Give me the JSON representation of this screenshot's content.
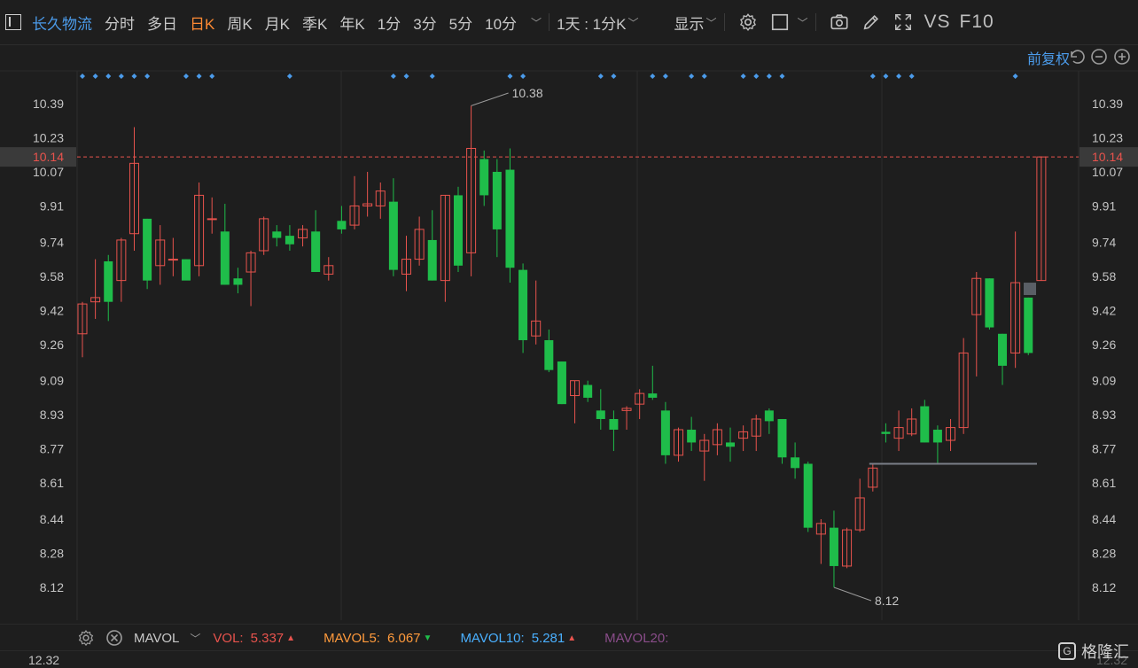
{
  "toolbar": {
    "stock_name": "长久物流",
    "periods": [
      "分时",
      "多日",
      "日K",
      "周K",
      "月K",
      "季K",
      "年K",
      "1分",
      "3分",
      "5分",
      "10分"
    ],
    "active_period": "日K",
    "multi_period": "1天 : 1分K",
    "display": "显示",
    "vs": "VS",
    "f10": "F10"
  },
  "chart": {
    "adjust_mode": "前复权",
    "price_levels": [
      "10.39",
      "10.23",
      "10.07",
      "9.91",
      "9.74",
      "9.58",
      "9.42",
      "9.26",
      "9.09",
      "8.93",
      "8.77",
      "8.61",
      "8.44",
      "8.28",
      "8.12"
    ],
    "current_price": "10.14",
    "high_label": "10.38",
    "low_label": "8.12",
    "colors": {
      "up": "#e8534d",
      "down": "#1fbd4a",
      "bg": "#1e1e1e",
      "grid": "#2c2c2c",
      "accent": "#4b9bea",
      "current": "#e8534d"
    }
  },
  "volume": {
    "indicator": "MAVOL",
    "vol_label": "VOL:",
    "vol_value": "5.337",
    "ma5_label": "MAVOL5:",
    "ma5_value": "6.067",
    "ma10_label": "MAVOL10:",
    "ma10_value": "5.281",
    "ma20_label": "MAVOL20:",
    "top_value": "12.32"
  },
  "watermark": {
    "text": "格隆汇"
  },
  "chart_data": {
    "type": "candlestick",
    "yrange": [
      8.05,
      10.45
    ],
    "candles": [
      {
        "o": 9.31,
        "h": 9.46,
        "l": 9.2,
        "c": 9.45
      },
      {
        "o": 9.46,
        "h": 9.66,
        "l": 9.38,
        "c": 9.48
      },
      {
        "o": 9.65,
        "h": 9.68,
        "l": 9.37,
        "c": 9.46
      },
      {
        "o": 9.56,
        "h": 9.76,
        "l": 9.46,
        "c": 9.75
      },
      {
        "o": 9.78,
        "h": 10.28,
        "l": 9.7,
        "c": 10.11
      },
      {
        "o": 9.85,
        "h": 9.85,
        "l": 9.52,
        "c": 9.56
      },
      {
        "o": 9.63,
        "h": 9.82,
        "l": 9.54,
        "c": 9.75
      },
      {
        "o": 9.66,
        "h": 9.76,
        "l": 9.58,
        "c": 9.66
      },
      {
        "o": 9.66,
        "h": 9.66,
        "l": 9.57,
        "c": 9.56
      },
      {
        "o": 9.63,
        "h": 10.02,
        "l": 9.58,
        "c": 9.96
      },
      {
        "o": 9.85,
        "h": 9.95,
        "l": 9.78,
        "c": 9.85
      },
      {
        "o": 9.79,
        "h": 9.92,
        "l": 9.54,
        "c": 9.54
      },
      {
        "o": 9.57,
        "h": 9.62,
        "l": 9.5,
        "c": 9.54
      },
      {
        "o": 9.6,
        "h": 9.7,
        "l": 9.44,
        "c": 9.69
      },
      {
        "o": 9.7,
        "h": 9.86,
        "l": 9.68,
        "c": 9.85
      },
      {
        "o": 9.79,
        "h": 9.82,
        "l": 9.72,
        "c": 9.76
      },
      {
        "o": 9.77,
        "h": 9.82,
        "l": 9.7,
        "c": 9.73
      },
      {
        "o": 9.76,
        "h": 9.82,
        "l": 9.72,
        "c": 9.8
      },
      {
        "o": 9.79,
        "h": 9.89,
        "l": 9.6,
        "c": 9.6
      },
      {
        "o": 9.59,
        "h": 9.67,
        "l": 9.56,
        "c": 9.63
      },
      {
        "o": 9.84,
        "h": 9.91,
        "l": 9.78,
        "c": 9.8
      },
      {
        "o": 9.82,
        "h": 10.05,
        "l": 9.8,
        "c": 9.91
      },
      {
        "o": 9.91,
        "h": 10.07,
        "l": 9.86,
        "c": 9.92
      },
      {
        "o": 9.91,
        "h": 10.02,
        "l": 9.85,
        "c": 9.98
      },
      {
        "o": 9.93,
        "h": 10.04,
        "l": 9.58,
        "c": 9.61
      },
      {
        "o": 9.59,
        "h": 9.77,
        "l": 9.51,
        "c": 9.66
      },
      {
        "o": 9.66,
        "h": 9.86,
        "l": 9.63,
        "c": 9.8
      },
      {
        "o": 9.75,
        "h": 9.89,
        "l": 9.56,
        "c": 9.56
      },
      {
        "o": 9.56,
        "h": 9.96,
        "l": 9.46,
        "c": 9.96
      },
      {
        "o": 9.96,
        "h": 10.0,
        "l": 9.6,
        "c": 9.63
      },
      {
        "o": 9.69,
        "h": 10.38,
        "l": 9.58,
        "c": 10.18
      },
      {
        "o": 10.13,
        "h": 10.17,
        "l": 9.91,
        "c": 9.96
      },
      {
        "o": 10.07,
        "h": 10.13,
        "l": 9.67,
        "c": 9.8
      },
      {
        "o": 10.08,
        "h": 10.18,
        "l": 9.55,
        "c": 9.62
      },
      {
        "o": 9.61,
        "h": 9.64,
        "l": 9.22,
        "c": 9.28
      },
      {
        "o": 9.3,
        "h": 9.56,
        "l": 9.26,
        "c": 9.37
      },
      {
        "o": 9.28,
        "h": 9.33,
        "l": 9.13,
        "c": 9.14
      },
      {
        "o": 9.18,
        "h": 9.18,
        "l": 8.98,
        "c": 8.98
      },
      {
        "o": 9.02,
        "h": 9.09,
        "l": 8.89,
        "c": 9.09
      },
      {
        "o": 9.07,
        "h": 9.09,
        "l": 8.99,
        "c": 9.01
      },
      {
        "o": 8.95,
        "h": 9.05,
        "l": 8.86,
        "c": 8.91
      },
      {
        "o": 8.91,
        "h": 8.95,
        "l": 8.76,
        "c": 8.86
      },
      {
        "o": 8.95,
        "h": 8.97,
        "l": 8.86,
        "c": 8.96
      },
      {
        "o": 8.98,
        "h": 9.05,
        "l": 8.91,
        "c": 9.03
      },
      {
        "o": 9.03,
        "h": 9.16,
        "l": 9.0,
        "c": 9.01
      },
      {
        "o": 8.95,
        "h": 8.99,
        "l": 8.7,
        "c": 8.74
      },
      {
        "o": 8.74,
        "h": 8.87,
        "l": 8.71,
        "c": 8.86
      },
      {
        "o": 8.86,
        "h": 8.92,
        "l": 8.76,
        "c": 8.8
      },
      {
        "o": 8.76,
        "h": 8.84,
        "l": 8.62,
        "c": 8.81
      },
      {
        "o": 8.79,
        "h": 8.89,
        "l": 8.74,
        "c": 8.86
      },
      {
        "o": 8.8,
        "h": 8.87,
        "l": 8.71,
        "c": 8.78
      },
      {
        "o": 8.82,
        "h": 8.88,
        "l": 8.76,
        "c": 8.85
      },
      {
        "o": 8.83,
        "h": 8.93,
        "l": 8.76,
        "c": 8.91
      },
      {
        "o": 8.95,
        "h": 8.96,
        "l": 8.84,
        "c": 8.9
      },
      {
        "o": 8.91,
        "h": 8.91,
        "l": 8.7,
        "c": 8.73
      },
      {
        "o": 8.73,
        "h": 8.8,
        "l": 8.63,
        "c": 8.68
      },
      {
        "o": 8.7,
        "h": 8.71,
        "l": 8.38,
        "c": 8.4
      },
      {
        "o": 8.37,
        "h": 8.44,
        "l": 8.23,
        "c": 8.42
      },
      {
        "o": 8.4,
        "h": 8.48,
        "l": 8.12,
        "c": 8.22
      },
      {
        "o": 8.22,
        "h": 8.4,
        "l": 8.21,
        "c": 8.39
      },
      {
        "o": 8.39,
        "h": 8.63,
        "l": 8.38,
        "c": 8.54
      },
      {
        "o": 8.59,
        "h": 8.7,
        "l": 8.57,
        "c": 8.68
      },
      {
        "o": 8.85,
        "h": 8.89,
        "l": 8.8,
        "c": 8.84
      },
      {
        "o": 8.82,
        "h": 8.95,
        "l": 8.76,
        "c": 8.87
      },
      {
        "o": 8.84,
        "h": 8.96,
        "l": 8.83,
        "c": 8.91
      },
      {
        "o": 8.97,
        "h": 9.0,
        "l": 8.8,
        "c": 8.8
      },
      {
        "o": 8.86,
        "h": 8.88,
        "l": 8.7,
        "c": 8.8
      },
      {
        "o": 8.81,
        "h": 8.91,
        "l": 8.76,
        "c": 8.87
      },
      {
        "o": 8.87,
        "h": 9.29,
        "l": 8.84,
        "c": 9.22
      },
      {
        "o": 9.4,
        "h": 9.6,
        "l": 9.11,
        "c": 9.57
      },
      {
        "o": 9.57,
        "h": 9.57,
        "l": 9.33,
        "c": 9.34
      },
      {
        "o": 9.31,
        "h": 9.31,
        "l": 9.07,
        "c": 9.16
      },
      {
        "o": 9.22,
        "h": 9.79,
        "l": 9.15,
        "c": 9.55
      },
      {
        "o": 9.48,
        "h": 9.48,
        "l": 9.21,
        "c": 9.22
      },
      {
        "o": 9.56,
        "h": 10.14,
        "l": 9.56,
        "c": 10.14
      }
    ],
    "markers": [
      0,
      1,
      2,
      3,
      4,
      5,
      8,
      9,
      10,
      16,
      24,
      25,
      27,
      33,
      34,
      40,
      41,
      44,
      45,
      47,
      48,
      51,
      52,
      53,
      54,
      61,
      62,
      63,
      64,
      72
    ]
  }
}
